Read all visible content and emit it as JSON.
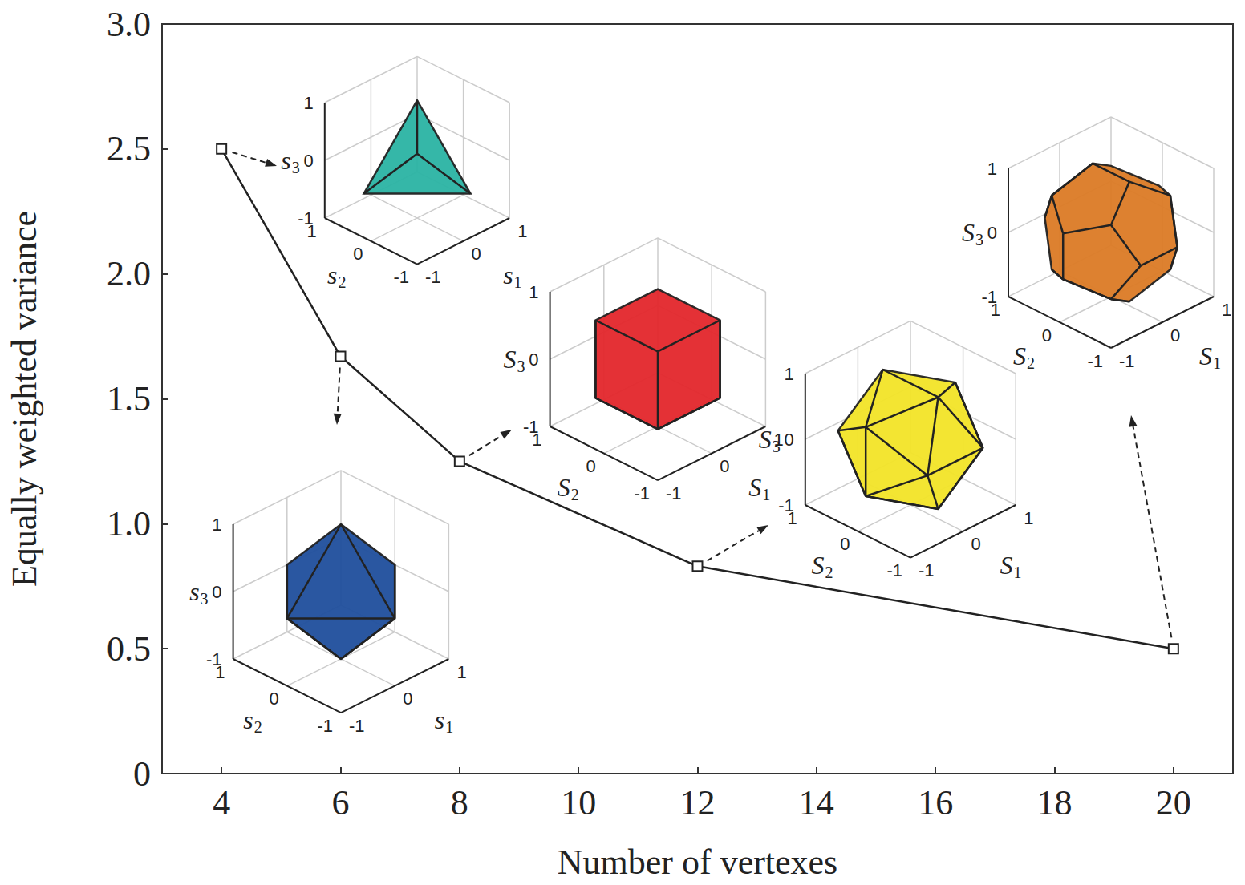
{
  "chart_data": {
    "type": "line",
    "xlabel": "Number of vertexes",
    "ylabel": "Equally weighted variance",
    "x": [
      4,
      6,
      8,
      12,
      20
    ],
    "values": [
      2.5,
      1.67,
      1.25,
      0.83,
      0.5
    ],
    "color": "#222222",
    "marker": "square",
    "line_style": "solid",
    "xlim": [
      3,
      21
    ],
    "ylim": [
      0,
      3
    ],
    "xticks": [
      4,
      6,
      8,
      10,
      12,
      14,
      16,
      18,
      20
    ],
    "yticks": [
      0,
      0.5,
      {
        "value": 1,
        "label": "1.0"
      },
      1.5,
      {
        "value": 2,
        "label": "2.0"
      },
      2.5,
      {
        "value": 3,
        "label": "3.0"
      }
    ],
    "grid": false,
    "insets": [
      {
        "vertices": 4,
        "color": "#2ab3a3",
        "axis_labels": [
          "s1",
          "s2",
          "s3"
        ],
        "ticks": [
          -1,
          0,
          1
        ]
      },
      {
        "vertices": 6,
        "color": "#1f4e9c",
        "axis_labels": [
          "s1",
          "s2",
          "s3"
        ],
        "ticks": [
          -1,
          0,
          1
        ]
      },
      {
        "vertices": 8,
        "color": "#e3262b",
        "axis_labels": [
          "S1",
          "S2",
          "S3"
        ],
        "ticks": [
          -1,
          0,
          1
        ]
      },
      {
        "vertices": 12,
        "color": "#f2e427",
        "axis_labels": [
          "S1",
          "S2",
          "S3"
        ],
        "ticks": [
          -1,
          0,
          1
        ]
      },
      {
        "vertices": 20,
        "color": "#db7a25",
        "axis_labels": [
          "S1",
          "S2",
          "S3"
        ],
        "ticks": [
          -1,
          0,
          1
        ]
      }
    ]
  }
}
